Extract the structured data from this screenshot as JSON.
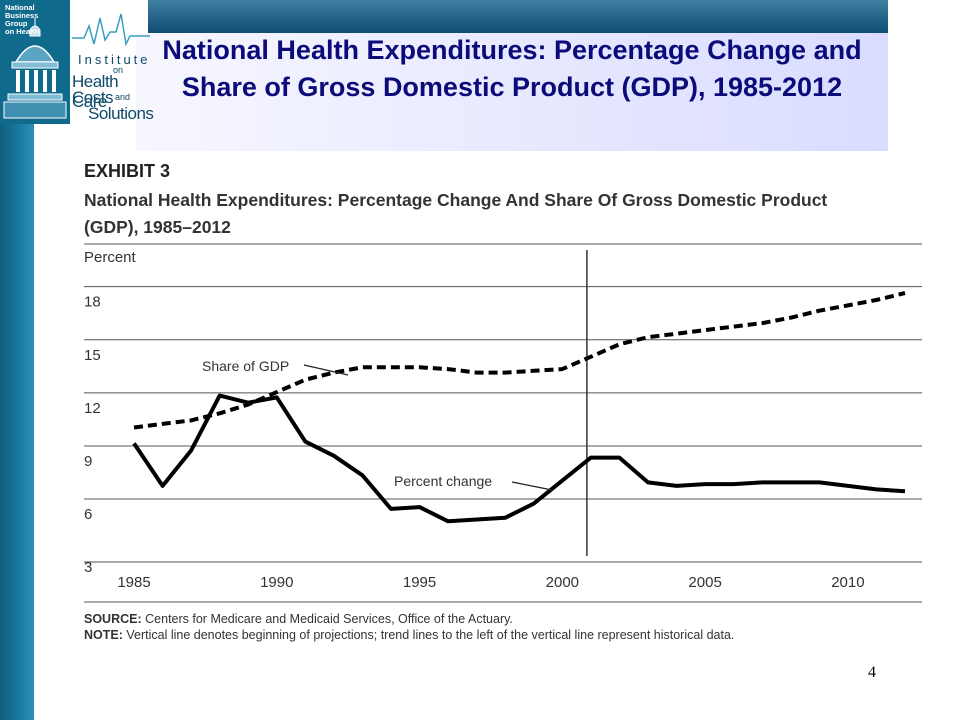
{
  "slide": {
    "title": "National Health Expenditures: Percentage Change and Share of Gross Domestic Product (GDP), 1985-2012",
    "page_number": "4"
  },
  "logo": {
    "org_lines": [
      "National",
      "Business",
      "Group",
      "on Health"
    ],
    "institute": "Institute",
    "on": "on",
    "health_care": "Health Care",
    "costs": "Costs",
    "and": "and",
    "solutions": "Solutions"
  },
  "exhibit": {
    "label": "EXHIBIT 3",
    "title": "National Health Expenditures: Percentage Change And Share Of Gross Domestic Product (GDP), 1985–2012",
    "source_label": "SOURCE:",
    "source_text": "Centers for Medicare and Medicaid Services, Office of the Actuary.",
    "note_label": "NOTE:",
    "note_text": "Vertical line denotes beginning of projections; trend lines to the left of the vertical line represent historical data."
  },
  "chart_data": {
    "type": "line",
    "ylabel": "Percent",
    "xlim": [
      1985,
      2012
    ],
    "ylim": [
      3,
      18
    ],
    "yticks": [
      3,
      6,
      9,
      12,
      15,
      18
    ],
    "xticks": [
      1985,
      1990,
      1995,
      2000,
      2005,
      2010
    ],
    "grid": "horizontal",
    "projection_start": 2001,
    "series": [
      {
        "name": "Share of GDP",
        "style": "dashed",
        "x": [
          1985,
          1986,
          1987,
          1988,
          1989,
          1990,
          1991,
          1992,
          1993,
          1994,
          1995,
          1996,
          1997,
          1998,
          1999,
          2000,
          2001,
          2002,
          2003,
          2004,
          2005,
          2006,
          2007,
          2008,
          2009,
          2010,
          2011,
          2012
        ],
        "values": [
          10.1,
          10.3,
          10.5,
          10.9,
          11.4,
          12.1,
          12.8,
          13.2,
          13.5,
          13.5,
          13.5,
          13.4,
          13.2,
          13.2,
          13.3,
          13.4,
          14.1,
          14.8,
          15.2,
          15.4,
          15.6,
          15.8,
          16.0,
          16.3,
          16.7,
          17.0,
          17.3,
          17.7
        ]
      },
      {
        "name": "Percent change",
        "style": "solid",
        "x": [
          1985,
          1986,
          1987,
          1988,
          1989,
          1990,
          1991,
          1992,
          1993,
          1994,
          1995,
          1996,
          1997,
          1998,
          1999,
          2000,
          2001,
          2002,
          2003,
          2004,
          2005,
          2006,
          2007,
          2008,
          2009,
          2010,
          2011,
          2012
        ],
        "values": [
          9.2,
          6.8,
          8.8,
          11.9,
          11.5,
          11.8,
          9.3,
          8.5,
          7.4,
          5.5,
          5.6,
          4.8,
          4.9,
          5.0,
          5.8,
          7.1,
          8.4,
          8.4,
          7.0,
          6.8,
          6.9,
          6.9,
          7.0,
          7.0,
          7.0,
          6.8,
          6.6,
          6.5
        ]
      }
    ]
  },
  "colors": {
    "slide_title": "#0b0b7a",
    "sidebar": "#1a79a0",
    "line": "#000000",
    "grid": "#555555"
  }
}
